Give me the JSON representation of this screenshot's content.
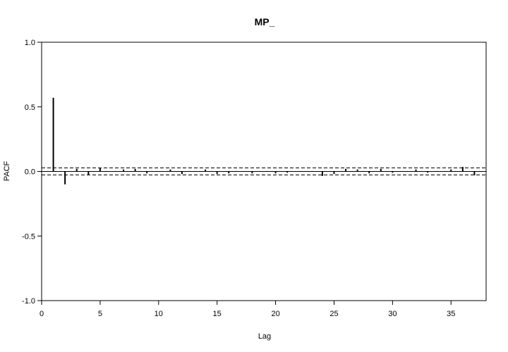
{
  "chart_data": {
    "type": "bar",
    "title": "MP_",
    "xlabel": "Lag",
    "ylabel": "PACF",
    "xlim": [
      0,
      38
    ],
    "ylim": [
      -1,
      1
    ],
    "x_ticks": [
      0,
      5,
      10,
      15,
      20,
      25,
      30,
      35
    ],
    "y_ticks": [
      -1.0,
      -0.5,
      0.0,
      0.5,
      1.0
    ],
    "y_tick_labels": [
      "-1.0",
      "-0.5",
      "0.0",
      "0.5",
      "1.0"
    ],
    "x_tick_labels": [
      "0",
      "5",
      "10",
      "15",
      "20",
      "25",
      "30",
      "35"
    ],
    "confidence_bounds": [
      0.027,
      -0.027
    ],
    "lags": [
      1,
      2,
      3,
      4,
      5,
      6,
      7,
      8,
      9,
      10,
      11,
      12,
      13,
      14,
      15,
      16,
      17,
      18,
      19,
      20,
      21,
      22,
      23,
      24,
      25,
      26,
      27,
      28,
      29,
      30,
      31,
      32,
      33,
      34,
      35,
      36,
      37
    ],
    "values": [
      0.57,
      -0.1,
      0.02,
      -0.03,
      0.03,
      0.0,
      0.015,
      0.02,
      -0.015,
      0.0,
      0.015,
      -0.02,
      0.0,
      0.015,
      -0.02,
      -0.015,
      0.0,
      -0.015,
      0.0,
      -0.015,
      -0.01,
      0.0,
      0.0,
      -0.035,
      -0.02,
      0.02,
      0.015,
      -0.015,
      0.02,
      -0.01,
      0.0,
      0.015,
      -0.01,
      0.0,
      0.015,
      0.035,
      -0.03
    ],
    "grid": false
  }
}
